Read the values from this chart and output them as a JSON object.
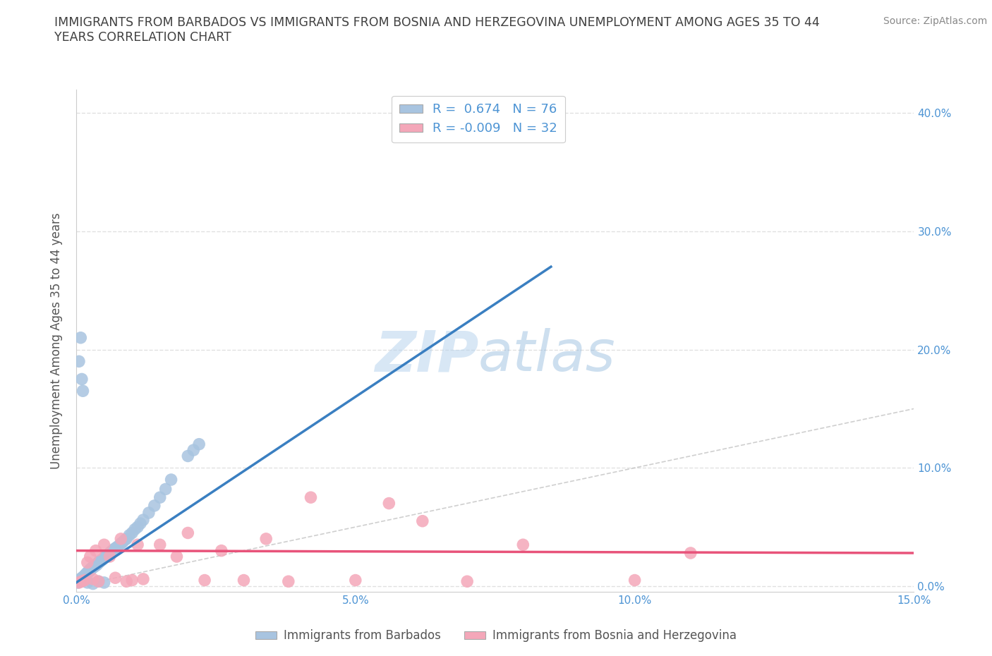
{
  "title_line1": "IMMIGRANTS FROM BARBADOS VS IMMIGRANTS FROM BOSNIA AND HERZEGOVINA UNEMPLOYMENT AMONG AGES 35 TO 44",
  "title_line2": "YEARS CORRELATION CHART",
  "ylabel": "Unemployment Among Ages 35 to 44 years",
  "source_text": "Source: ZipAtlas.com",
  "xlim": [
    0.0,
    0.15
  ],
  "ylim": [
    -0.005,
    0.42
  ],
  "xtick_vals": [
    0.0,
    0.05,
    0.1,
    0.15
  ],
  "xtick_labels": [
    "0.0%",
    "5.0%",
    "10.0%",
    "15.0%"
  ],
  "ytick_vals": [
    0.0,
    0.1,
    0.2,
    0.3,
    0.4
  ],
  "ytick_labels": [
    "0.0%",
    "10.0%",
    "20.0%",
    "30.0%",
    "40.0%"
  ],
  "barbados_color": "#a8c4e0",
  "bosnia_color": "#f4a7b9",
  "barbados_line_color": "#3a7fc1",
  "bosnia_line_color": "#e8537a",
  "diag_color": "#bbbbbb",
  "R_barbados": 0.674,
  "N_barbados": 76,
  "R_bosnia": -0.009,
  "N_bosnia": 32,
  "legend_barbados": "Immigrants from Barbados",
  "legend_bosnia": "Immigrants from Bosnia and Herzegovina",
  "background_color": "#ffffff",
  "grid_color": "#dddddd",
  "title_color": "#404040",
  "tick_label_color": "#4d94d4",
  "ylabel_color": "#555555",
  "source_color": "#888888",
  "barbados_x": [
    0.0003,
    0.0005,
    0.0006,
    0.0008,
    0.001,
    0.001,
    0.0012,
    0.0013,
    0.0014,
    0.0015,
    0.0015,
    0.0016,
    0.0017,
    0.0018,
    0.0019,
    0.002,
    0.0021,
    0.0022,
    0.0023,
    0.0024,
    0.0025,
    0.0026,
    0.0027,
    0.0028,
    0.003,
    0.0031,
    0.0032,
    0.0034,
    0.0035,
    0.0037,
    0.0038,
    0.004,
    0.0041,
    0.0042,
    0.0043,
    0.0045,
    0.0046,
    0.0048,
    0.005,
    0.0052,
    0.0054,
    0.0056,
    0.0058,
    0.006,
    0.0062,
    0.0065,
    0.0067,
    0.007,
    0.0073,
    0.0076,
    0.008,
    0.0083,
    0.0087,
    0.009,
    0.0095,
    0.01,
    0.0105,
    0.011,
    0.0115,
    0.012,
    0.013,
    0.014,
    0.015,
    0.016,
    0.017,
    0.02,
    0.021,
    0.022,
    0.0005,
    0.0008,
    0.001,
    0.0012,
    0.002,
    0.003,
    0.004,
    0.005
  ],
  "barbados_y": [
    0.003,
    0.005,
    0.004,
    0.006,
    0.006,
    0.007,
    0.007,
    0.008,
    0.008,
    0.008,
    0.009,
    0.009,
    0.01,
    0.01,
    0.011,
    0.011,
    0.012,
    0.012,
    0.013,
    0.013,
    0.014,
    0.014,
    0.015,
    0.015,
    0.016,
    0.016,
    0.017,
    0.017,
    0.018,
    0.018,
    0.019,
    0.02,
    0.02,
    0.021,
    0.021,
    0.022,
    0.022,
    0.023,
    0.024,
    0.025,
    0.025,
    0.026,
    0.027,
    0.028,
    0.029,
    0.03,
    0.031,
    0.032,
    0.033,
    0.034,
    0.036,
    0.037,
    0.039,
    0.04,
    0.043,
    0.045,
    0.048,
    0.05,
    0.053,
    0.056,
    0.062,
    0.068,
    0.075,
    0.082,
    0.09,
    0.11,
    0.115,
    0.12,
    0.19,
    0.21,
    0.175,
    0.165,
    0.003,
    0.002,
    0.004,
    0.003
  ],
  "bosnia_x": [
    0.0005,
    0.001,
    0.0015,
    0.002,
    0.0025,
    0.003,
    0.0035,
    0.004,
    0.005,
    0.006,
    0.007,
    0.008,
    0.009,
    0.01,
    0.011,
    0.012,
    0.015,
    0.018,
    0.02,
    0.023,
    0.026,
    0.03,
    0.034,
    0.038,
    0.042,
    0.05,
    0.056,
    0.062,
    0.07,
    0.08,
    0.1,
    0.11
  ],
  "bosnia_y": [
    0.003,
    0.004,
    0.005,
    0.02,
    0.025,
    0.006,
    0.03,
    0.004,
    0.035,
    0.025,
    0.007,
    0.04,
    0.004,
    0.005,
    0.035,
    0.006,
    0.035,
    0.025,
    0.045,
    0.005,
    0.03,
    0.005,
    0.04,
    0.004,
    0.075,
    0.005,
    0.07,
    0.055,
    0.004,
    0.035,
    0.005,
    0.028
  ],
  "barbados_line_x": [
    0.0,
    0.085
  ],
  "barbados_line_y": [
    0.003,
    0.27
  ],
  "bosnia_line_x": [
    0.0,
    0.15
  ],
  "bosnia_line_y": [
    0.03,
    0.028
  ]
}
